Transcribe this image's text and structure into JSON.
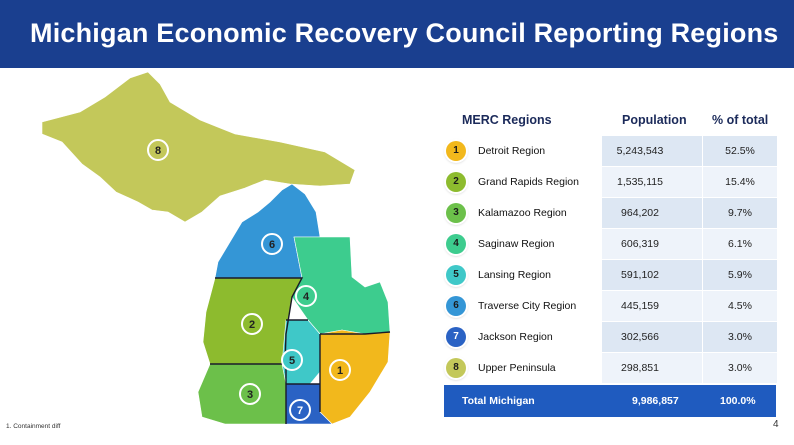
{
  "title": "Michigan Economic Recovery Council Reporting Regions",
  "table": {
    "headers": [
      "MERC Regions",
      "Population",
      "% of total"
    ],
    "rows": [
      {
        "num": "1",
        "name": "Detroit Region",
        "population": "5,243,543",
        "pct": "52.5%",
        "color": "#f2b81c"
      },
      {
        "num": "2",
        "name": "Grand Rapids Region",
        "population": "1,535,115",
        "pct": "15.4%",
        "color": "#8dbb2e"
      },
      {
        "num": "3",
        "name": "Kalamazoo Region",
        "population": "964,202",
        "pct": "9.7%",
        "color": "#6cc04a"
      },
      {
        "num": "4",
        "name": "Saginaw Region",
        "population": "606,319",
        "pct": "6.1%",
        "color": "#3dcc8e"
      },
      {
        "num": "5",
        "name": "Lansing Region",
        "population": "591,102",
        "pct": "5.9%",
        "color": "#3fc8c8"
      },
      {
        "num": "6",
        "name": "Traverse City Region",
        "population": "445,159",
        "pct": "4.5%",
        "color": "#3496d6"
      },
      {
        "num": "7",
        "name": "Jackson Region",
        "population": "302,566",
        "pct": "3.0%",
        "color": "#2a62c4"
      },
      {
        "num": "8",
        "name": "Upper Peninsula",
        "population": "298,851",
        "pct": "3.0%",
        "color": "#c3c85a"
      }
    ],
    "total": {
      "name": "Total Michigan",
      "population": "9,986,857",
      "pct": "100.0%"
    }
  },
  "map_labels": [
    "8",
    "6",
    "4",
    "2",
    "5",
    "1",
    "3",
    "7"
  ],
  "footnote": "1. Containment diff",
  "page_number": "4"
}
